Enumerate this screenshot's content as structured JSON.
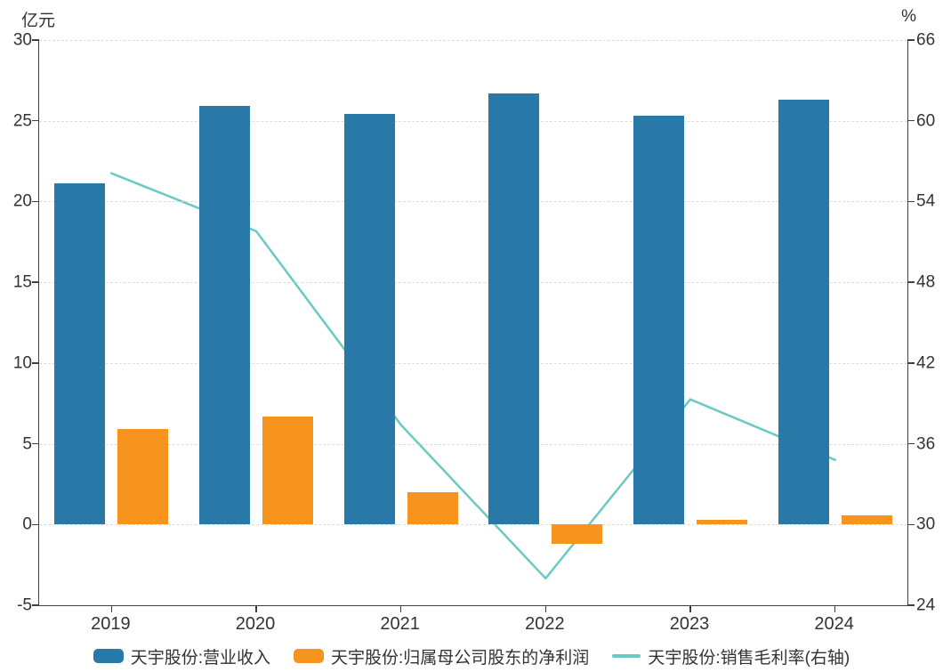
{
  "chart_data": {
    "type": "bar",
    "subtype": "combo-bar-line",
    "title": "",
    "categories": [
      "2019",
      "2020",
      "2021",
      "2022",
      "2023",
      "2024"
    ],
    "series": [
      {
        "name": "天宇股份:营业收入",
        "type": "bar",
        "axis": "left",
        "color": "#2878A8",
        "values": [
          21.1,
          25.9,
          25.4,
          26.7,
          25.3,
          26.3
        ]
      },
      {
        "name": "天宇股份:归属母公司股东的净利润",
        "type": "bar",
        "axis": "left",
        "color": "#F7941E",
        "values": [
          5.9,
          6.7,
          2.0,
          -1.2,
          0.3,
          0.55
        ]
      },
      {
        "name": "天宇股份:销售毛利率(右轴)",
        "type": "line",
        "axis": "right",
        "color": "#6BC9C3",
        "values": [
          56.1,
          51.8,
          37.4,
          26.0,
          39.3,
          34.8
        ]
      }
    ],
    "left_axis": {
      "title": "亿元",
      "min": -5,
      "max": 30,
      "ticks": [
        30,
        25,
        20,
        15,
        10,
        5,
        0,
        -5
      ]
    },
    "right_axis": {
      "title": "%",
      "min": 24,
      "max": 66,
      "ticks": [
        66,
        60,
        54,
        48,
        42,
        36,
        30,
        24
      ]
    },
    "grid": {
      "show": true,
      "style": "dashed",
      "color": "#DCDCDC"
    },
    "legend_position": "bottom"
  },
  "colors": {
    "revenue_bar": "#2878A8",
    "profit_bar": "#F7941E",
    "margin_line": "#6BC9C3",
    "axis": "#404040",
    "gridline": "#DCDCDC",
    "text": "#333333"
  }
}
